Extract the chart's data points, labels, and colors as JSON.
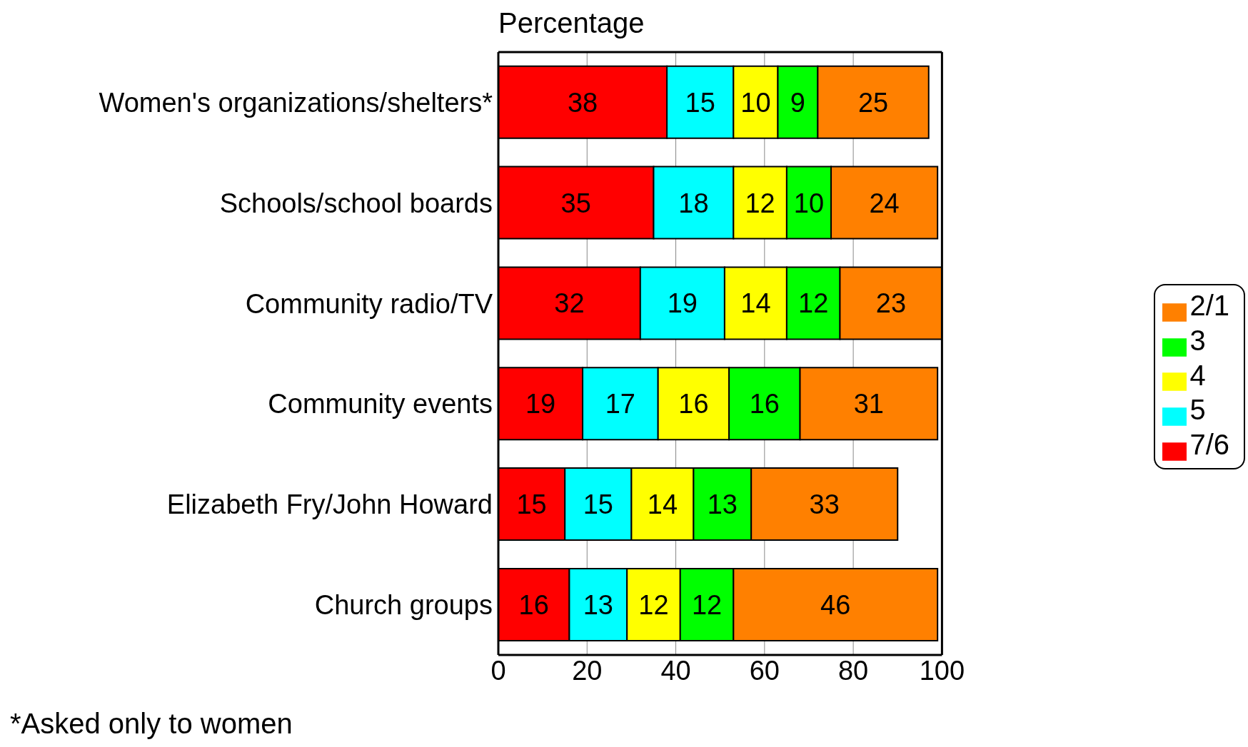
{
  "chart_data": {
    "type": "bar",
    "orientation": "horizontal",
    "stacked": true,
    "title": "Percentage",
    "categories": [
      "Women's organizations/shelters*",
      "Schools/school boards",
      "Community radio/TV",
      "Community events",
      "Elizabeth Fry/John Howard",
      "Church groups"
    ],
    "series": [
      {
        "name": "7/6",
        "color": "#ff0000",
        "values": [
          38,
          35,
          32,
          19,
          15,
          16
        ]
      },
      {
        "name": "5",
        "color": "#00ffff",
        "values": [
          15,
          18,
          19,
          17,
          15,
          13
        ]
      },
      {
        "name": "4",
        "color": "#ffff00",
        "values": [
          10,
          12,
          14,
          16,
          14,
          12
        ]
      },
      {
        "name": "3",
        "color": "#00ff00",
        "values": [
          9,
          10,
          12,
          16,
          13,
          12
        ]
      },
      {
        "name": "2/1",
        "color": "#ff8000",
        "values": [
          25,
          24,
          23,
          31,
          33,
          46
        ]
      }
    ],
    "xlim": [
      0,
      100
    ],
    "xticks": [
      0,
      20,
      40,
      60,
      80,
      100
    ],
    "grid": "x",
    "legend": "right",
    "data_labels": true,
    "annotations": [
      "*Asked only to women"
    ]
  }
}
